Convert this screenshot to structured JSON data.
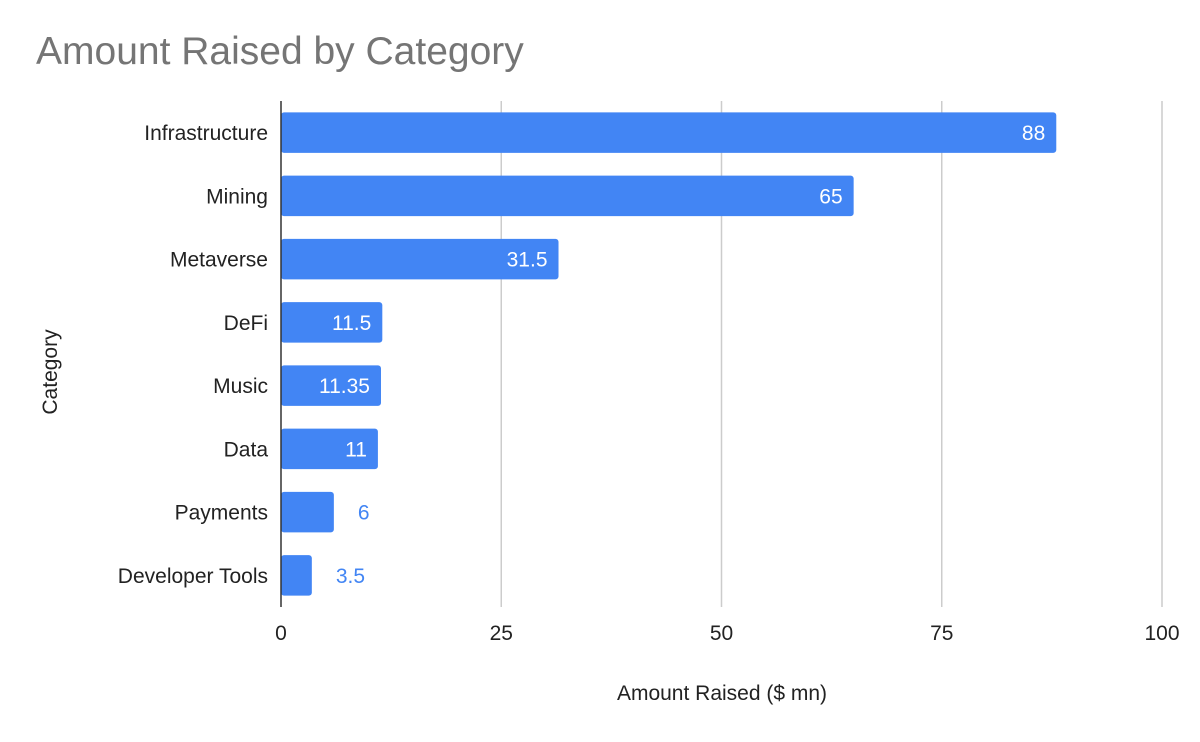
{
  "chart_data": {
    "type": "bar",
    "orientation": "horizontal",
    "title": "Amount Raised by Category",
    "xlabel": "Amount Raised ($ mn)",
    "ylabel": "Category",
    "categories": [
      "Infrastructure",
      "Mining",
      "Metaverse",
      "DeFi",
      "Music",
      "Data",
      "Payments",
      "Developer Tools"
    ],
    "values": [
      88,
      65,
      31.5,
      11.5,
      11.35,
      11,
      6,
      3.5
    ],
    "data_labels": [
      "88",
      "65",
      "31.5",
      "11.5",
      "11.35",
      "11",
      "6",
      "3.5"
    ],
    "xlim": [
      0,
      100
    ],
    "x_ticks": [
      0,
      25,
      50,
      75,
      100
    ],
    "x_tick_labels": [
      "0",
      "25",
      "50",
      "75",
      "100"
    ],
    "grid": true,
    "legend": "none",
    "colors": {
      "bar": "#4285f4",
      "title": "#757575",
      "grid": "#cccccc",
      "axis": "#333333",
      "label_inside": "#ffffff",
      "label_outside": "#4285f4"
    }
  }
}
